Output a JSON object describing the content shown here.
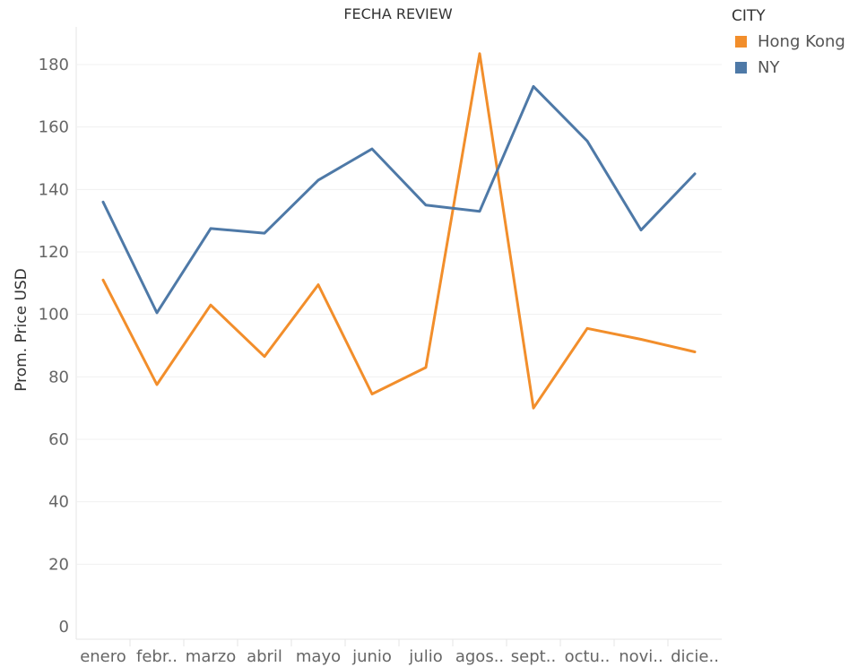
{
  "chart_data": {
    "type": "line",
    "title": "FECHA REVIEW",
    "ylabel": "Prom. Price USD",
    "xlabel": "",
    "categories": [
      "enero",
      "febr..",
      "marzo",
      "abril",
      "mayo",
      "junio",
      "julio",
      "agos..",
      "sept..",
      "octu..",
      "novi..",
      "dicie.."
    ],
    "ylim": [
      0,
      190
    ],
    "yticks": [
      0,
      20,
      40,
      60,
      80,
      100,
      120,
      140,
      160,
      180
    ],
    "grid": true,
    "legend_position": "top-right",
    "legend_title": "CITY",
    "series": [
      {
        "name": "Hong Kong",
        "color": "#F28E2B",
        "values": [
          111,
          77.5,
          103,
          86.5,
          109.5,
          74.5,
          83,
          183.5,
          70,
          95.5,
          92,
          88
        ]
      },
      {
        "name": "NY",
        "color": "#4E79A7",
        "values": [
          136,
          100.5,
          127.5,
          126,
          143,
          153,
          135,
          133,
          173,
          155.5,
          127,
          145
        ]
      }
    ]
  }
}
